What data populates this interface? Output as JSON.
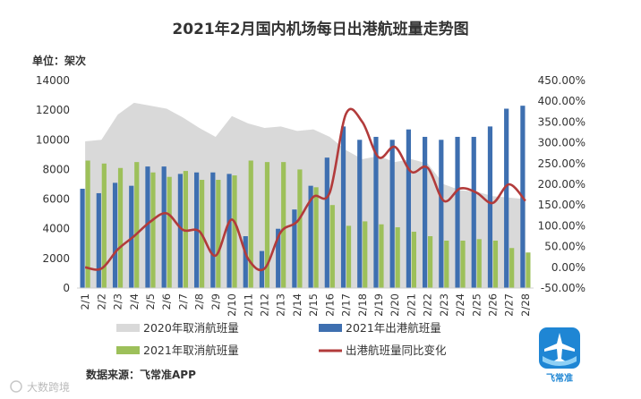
{
  "chart_data": {
    "type": "bar",
    "title": "2021年2月国内机场每日出港航班量走势图",
    "unit_label": "单位：架次",
    "categories": [
      "2/1",
      "2/2",
      "2/3",
      "2/4",
      "2/5",
      "2/6",
      "2/7",
      "2/8",
      "2/9",
      "2/10",
      "2/11",
      "2/12",
      "2/13",
      "2/14",
      "2/15",
      "2/16",
      "2/17",
      "2/18",
      "2/19",
      "2/20",
      "2/21",
      "2/22",
      "2/23",
      "2/24",
      "2/25",
      "2/26",
      "2/27",
      "2/28"
    ],
    "y_left": {
      "min": 0,
      "max": 14000,
      "ticks": [
        "0",
        "2000",
        "4000",
        "6000",
        "8000",
        "10000",
        "12000",
        "14000"
      ]
    },
    "y_right": {
      "min": -50,
      "max": 450,
      "ticks": [
        "-50.00%",
        "0.00%",
        "50.00%",
        "100.00%",
        "150.00%",
        "200.00%",
        "250.00%",
        "300.00%",
        "350.00%",
        "400.00%",
        "450.00%"
      ]
    },
    "series": [
      {
        "name": "2020年取消航班量",
        "type": "area",
        "axis": "left",
        "color": "#d9d9d9",
        "values": [
          9900,
          10000,
          11700,
          12500,
          12300,
          12100,
          11500,
          10800,
          10200,
          11600,
          11100,
          10800,
          10900,
          10600,
          10700,
          10200,
          9300,
          8700,
          8900,
          8500,
          8700,
          8400,
          7000,
          6600,
          6500,
          6200,
          6100,
          6000
        ]
      },
      {
        "name": "2021年出港航班量",
        "type": "bar",
        "axis": "left",
        "color": "#3e6fb0",
        "values": [
          6700,
          6400,
          7100,
          6900,
          8200,
          8200,
          7700,
          7800,
          7800,
          7700,
          3500,
          2500,
          4000,
          5300,
          6900,
          8800,
          10900,
          10000,
          10200,
          10000,
          10700,
          10200,
          10000,
          10200,
          10200,
          10900,
          12100,
          12300
        ]
      },
      {
        "name": "2021年取消航班量",
        "type": "bar",
        "axis": "left",
        "color": "#9dc05a",
        "values": [
          8600,
          8400,
          8100,
          8500,
          7800,
          7500,
          7900,
          7300,
          7300,
          7600,
          8600,
          8500,
          8500,
          8000,
          6800,
          5600,
          4200,
          4500,
          4300,
          4100,
          3800,
          3500,
          3200,
          3200,
          3300,
          3200,
          2700,
          2400
        ]
      },
      {
        "name": "出港航班量同比变化",
        "type": "line",
        "axis": "right",
        "color": "#b23b3b",
        "values": [
          0,
          -3,
          43,
          75,
          110,
          130,
          90,
          87,
          28,
          115,
          20,
          -3,
          85,
          110,
          170,
          180,
          370,
          350,
          265,
          290,
          230,
          240,
          160,
          190,
          180,
          155,
          200,
          160
        ]
      }
    ],
    "legend_position": "bottom",
    "grid": false
  },
  "source_label": "数据来源：飞常准APP",
  "logo_text": "飞常准",
  "watermark_text": "大数跨境",
  "colors": {
    "logo_blue": "#1f86d4",
    "axis": "#d0d0d0"
  }
}
